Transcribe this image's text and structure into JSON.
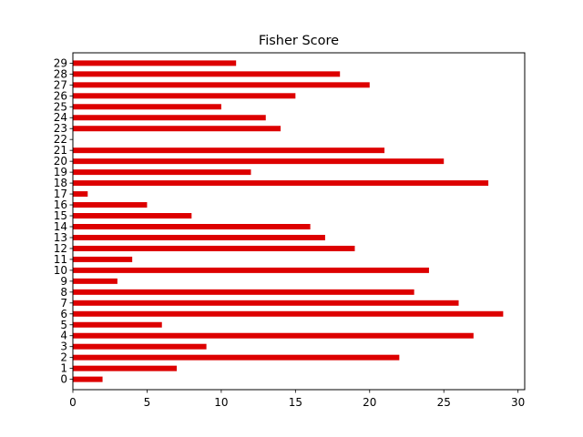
{
  "chart_data": {
    "type": "bar",
    "orientation": "horizontal",
    "title": "Fisher Score",
    "xlabel": "",
    "ylabel": "",
    "categories": [
      "0",
      "1",
      "2",
      "3",
      "4",
      "5",
      "6",
      "7",
      "8",
      "9",
      "10",
      "11",
      "12",
      "13",
      "14",
      "15",
      "16",
      "17",
      "18",
      "19",
      "20",
      "21",
      "22",
      "23",
      "24",
      "25",
      "26",
      "27",
      "28",
      "29"
    ],
    "values": [
      2,
      7,
      22,
      9,
      27,
      6,
      29,
      26,
      23,
      3,
      24,
      4,
      19,
      17,
      16,
      8,
      5,
      1,
      28,
      12,
      25,
      21,
      0,
      14,
      13,
      10,
      15,
      20,
      18,
      11
    ],
    "xlim": [
      0,
      30.45
    ],
    "xticks": [
      0,
      5,
      10,
      15,
      20,
      25,
      30
    ],
    "grid": false,
    "bar_color": "#dd0000"
  }
}
